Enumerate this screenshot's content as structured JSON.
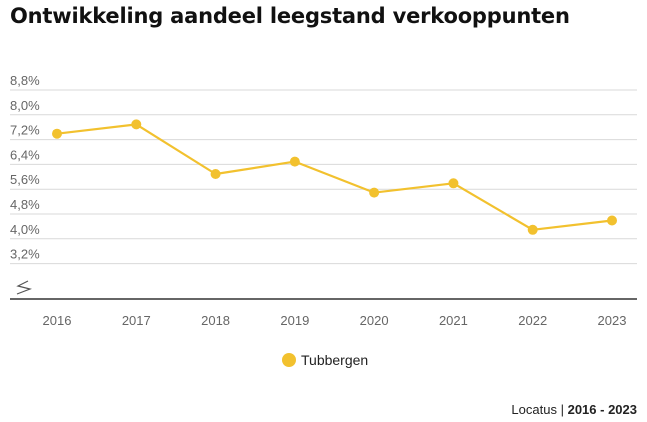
{
  "chart_data": {
    "type": "line",
    "title": "Ontwikkeling aandeel leegstand verkooppunten",
    "x": [
      "2016",
      "2017",
      "2018",
      "2019",
      "2020",
      "2021",
      "2022",
      "2023"
    ],
    "series": [
      {
        "name": "Tubbergen",
        "color": "#f2c12e",
        "values": [
          7.1,
          7.4,
          5.8,
          6.2,
          5.2,
          5.5,
          4.0,
          4.3
        ]
      }
    ],
    "yticks": [
      "8,8%",
      "8,0%",
      "7,2%",
      "6,4%",
      "5,6%",
      "4,8%",
      "4,0%",
      "3,2%"
    ],
    "ylim": [
      2.4,
      8.8
    ],
    "y_axis_break": true,
    "grid": true,
    "legend_position": "bottom-center",
    "source_label": "Locatus",
    "source_period": "2016 - 2023"
  }
}
